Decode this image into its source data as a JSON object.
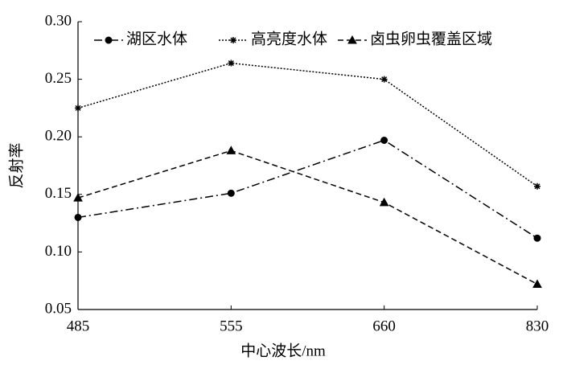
{
  "chart_data": {
    "type": "line",
    "xlabel": "中心波长/nm",
    "ylabel": "反射率",
    "categories": [
      "485",
      "555",
      "660",
      "830"
    ],
    "series": [
      {
        "name": "湖区水体",
        "color": "#000000",
        "linestyle": "dashdot",
        "marker": "star",
        "values": [
          0.13,
          0.151,
          0.197,
          0.112
        ]
      },
      {
        "name": "高亮度水体",
        "color": "#000000",
        "linestyle": "dotted",
        "marker": "plus",
        "values": [
          0.225,
          0.264,
          0.25,
          0.157
        ]
      },
      {
        "name": "卤虫卵虫覆盖区域",
        "color": "#000000",
        "linestyle": "dashed",
        "marker": "triangle",
        "values": [
          0.147,
          0.188,
          0.143,
          0.072
        ]
      }
    ],
    "ylim": [
      0.05,
      0.3
    ],
    "yticks": [
      0.05,
      {
        "value": 0.1,
        "label": "0.10"
      },
      0.15,
      {
        "value": 0.2,
        "label": "0.20"
      },
      0.25,
      {
        "value": 0.3,
        "label": "0.30"
      }
    ],
    "legend": "top",
    "grid": false
  }
}
